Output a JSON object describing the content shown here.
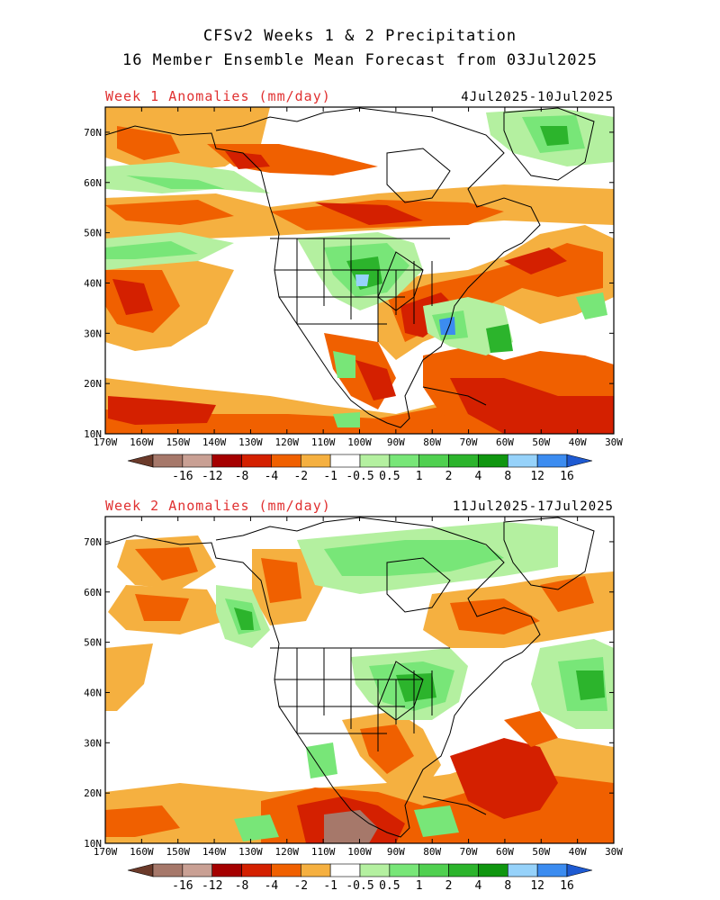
{
  "header": {
    "line1": "CFSv2 Weeks 1 & 2 Precipitation",
    "line2": "16 Member Ensemble Mean Forecast from 03Jul2025"
  },
  "panels": [
    {
      "label": "Week 1 Anomalies (mm/day)",
      "dates": "4Jul2025-10Jul2025",
      "lat_labels": [
        "70N",
        "60N",
        "50N",
        "40N",
        "30N",
        "20N",
        "10N"
      ],
      "lon_labels": [
        "170W",
        "160W",
        "150W",
        "140W",
        "130W",
        "120W",
        "110W",
        "100W",
        "90W",
        "80W",
        "70W",
        "60W",
        "50W",
        "40W",
        "30W"
      ]
    },
    {
      "label": "Week 2 Anomalies (mm/day)",
      "dates": "11Jul2025-17Jul2025",
      "lat_labels": [
        "70N",
        "60N",
        "50N",
        "40N",
        "30N",
        "20N",
        "10N"
      ],
      "lon_labels": [
        "170W",
        "160W",
        "150W",
        "140W",
        "130W",
        "120W",
        "110W",
        "100W",
        "90W",
        "80W",
        "70W",
        "60W",
        "50W",
        "40W",
        "30W"
      ]
    }
  ],
  "colorbar": {
    "labels": [
      "-16",
      "-12",
      "-8",
      "-4",
      "-2",
      "-1",
      "-0.5",
      "0.5",
      "1",
      "2",
      "4",
      "8",
      "12",
      "16"
    ],
    "colors": [
      "#6b3a2a",
      "#a6786a",
      "#c9a094",
      "#a50000",
      "#d42000",
      "#f06000",
      "#f5b040",
      "#ffffff",
      "#b4f0a0",
      "#78e678",
      "#50d050",
      "#2cb42c",
      "#109610",
      "#96d2fa",
      "#3c8cf0",
      "#1e5ad2"
    ]
  },
  "map_colors": {
    "dry_strong": "#d42000",
    "dry_med": "#f06000",
    "dry_light": "#f5b040",
    "wet_light": "#b4f0a0",
    "wet_med": "#78e678",
    "wet_strong": "#2cb42c",
    "wet_vstrong": "#109610",
    "wet_blue": "#3c8cf0",
    "brown": "#a6786a"
  }
}
